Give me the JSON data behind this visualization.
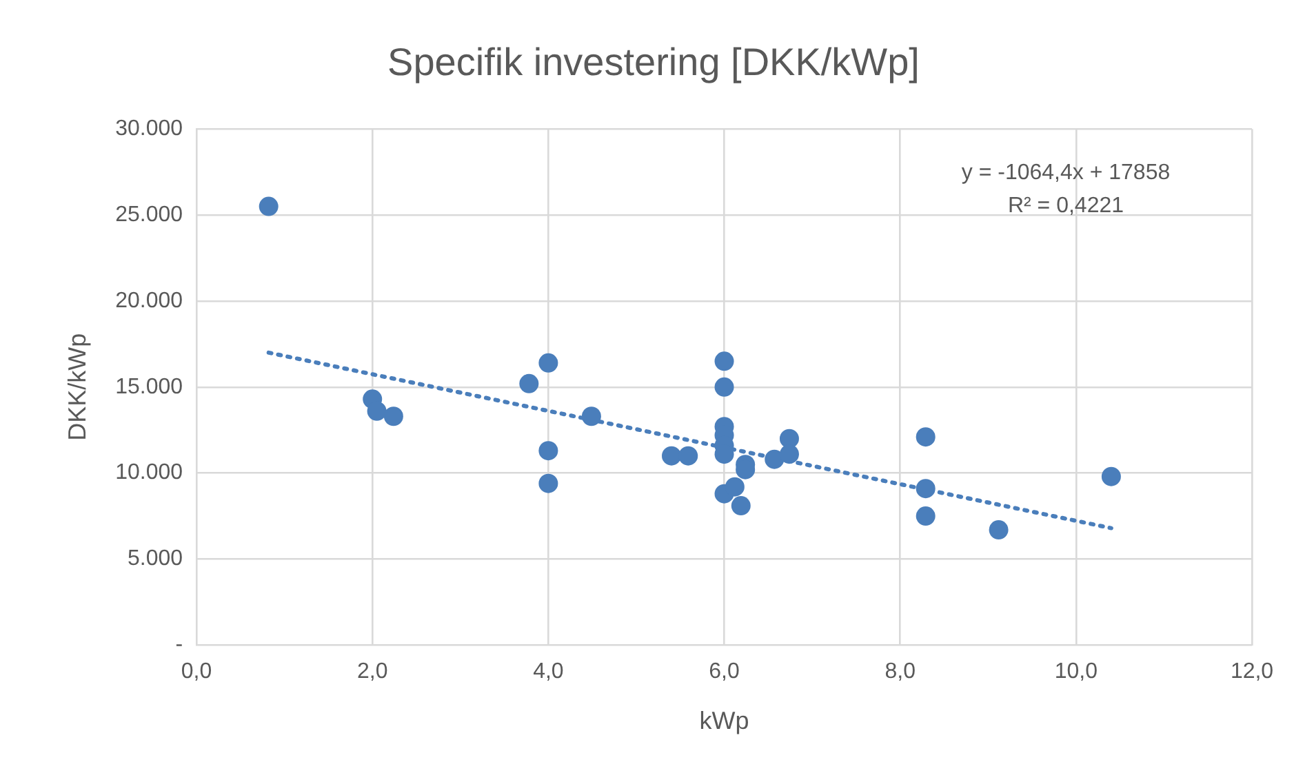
{
  "chart_data": {
    "type": "scatter",
    "title": "Specifik investering [DKK/kWp]",
    "xlabel": "kWp",
    "ylabel": "DKK/kWp",
    "xlim": [
      0,
      12
    ],
    "xticks": [
      {
        "value": 0,
        "label": "0,0"
      },
      {
        "value": 2,
        "label": "2,0"
      },
      {
        "value": 4,
        "label": "4,0"
      },
      {
        "value": 6,
        "label": "6,0"
      },
      {
        "value": 8,
        "label": "8,0"
      },
      {
        "value": 10,
        "label": "10,0"
      },
      {
        "value": 12,
        "label": "12,0"
      }
    ],
    "ylim": [
      0,
      30000
    ],
    "yticks": [
      {
        "value": 0,
        "label": "-"
      },
      {
        "value": 5000,
        "label": "5.000"
      },
      {
        "value": 10000,
        "label": "10.000"
      },
      {
        "value": 15000,
        "label": "15.000"
      },
      {
        "value": 20000,
        "label": "20.000"
      },
      {
        "value": 25000,
        "label": "25.000"
      },
      {
        "value": 30000,
        "label": "30.000"
      }
    ],
    "grid": true,
    "legend": false,
    "marker": "circle",
    "annotations": [
      "y = -1064,4x + 17858",
      "R² = 0,4221"
    ],
    "series": [
      {
        "color": "#4a7ebb",
        "x": [
          0.82,
          2.0,
          2.05,
          2.24,
          3.78,
          4.0,
          4.0,
          4.0,
          4.49,
          5.4,
          5.59,
          6.0,
          6.0,
          6.0,
          6.0,
          6.0,
          6.0,
          6.0,
          6.12,
          6.19,
          6.24,
          6.24,
          6.57,
          6.74,
          6.74,
          8.29,
          8.29,
          8.29,
          9.12,
          10.4
        ],
        "values": [
          25500,
          14300,
          13600,
          13300,
          15200,
          16400,
          11300,
          9400,
          13300,
          11000,
          11000,
          16500,
          15000,
          12700,
          12200,
          11600,
          11100,
          8800,
          9200,
          8100,
          10500,
          10200,
          10800,
          12000,
          11100,
          12100,
          9100,
          7500,
          6700,
          9800
        ]
      },
      {
        "type": "line",
        "color": "#4a7ebb",
        "line_style": "dotted",
        "marker": "none",
        "x": [
          0.82,
          10.4
        ],
        "values": [
          17000,
          6800
        ]
      }
    ]
  }
}
